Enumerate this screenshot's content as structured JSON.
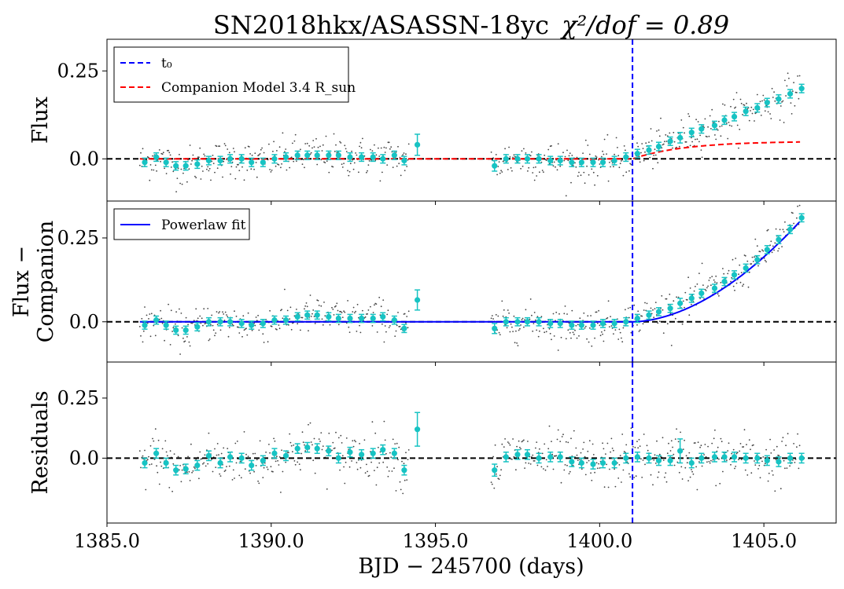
{
  "chart_data": {
    "type": "scatter",
    "title_main": "SN2018hkx/ASASSN-18yc",
    "title_stat": "χ²/dof = 0.89",
    "xlabel": "BJD − 245700 (days)",
    "xlim": [
      1385.0,
      1407.2
    ],
    "x_ticks": [
      1385.0,
      1390.0,
      1395.0,
      1400.0,
      1405.0
    ],
    "x_tick_labels": [
      "1385.0",
      "1390.0",
      "1395.0",
      "1400.0",
      "1405.0"
    ],
    "t0": 1401.0,
    "zero_line": 0.0,
    "colors": {
      "binned": "#17c3c3",
      "raw": "#444444",
      "t0_line": "#0000ff",
      "companion": "#ff0000",
      "powerlaw": "#0000ff",
      "zero_line": "#000000"
    },
    "panels": [
      {
        "name": "flux",
        "ylabel_lines": [
          "Flux"
        ],
        "ylim": [
          -0.12,
          0.34
        ],
        "y_ticks": [
          0.0,
          0.25
        ],
        "y_tick_labels": [
          "0.0",
          "0.25"
        ],
        "legend": [
          {
            "style": "dashed",
            "color": "#0000ff",
            "label": "t₀"
          },
          {
            "style": "dashed",
            "color": "#ff0000",
            "label": "Companion Model  3.4  R_sun"
          }
        ],
        "binned": {
          "x": [
            1386.15,
            1386.5,
            1386.8,
            1387.1,
            1387.4,
            1387.75,
            1388.1,
            1388.45,
            1388.75,
            1389.1,
            1389.4,
            1389.75,
            1390.1,
            1390.45,
            1390.8,
            1391.1,
            1391.4,
            1391.75,
            1392.05,
            1392.4,
            1392.75,
            1393.1,
            1393.4,
            1393.75,
            1394.05,
            1394.45,
            1396.8,
            1397.15,
            1397.5,
            1397.8,
            1398.15,
            1398.5,
            1398.8,
            1399.15,
            1399.45,
            1399.8,
            1400.1,
            1400.45,
            1400.8,
            1401.15,
            1401.5,
            1401.8,
            1402.15,
            1402.45,
            1402.8,
            1403.1,
            1403.5,
            1403.8,
            1404.1,
            1404.45,
            1404.8,
            1405.1,
            1405.45,
            1405.8,
            1406.15
          ],
          "y": [
            -0.01,
            0.005,
            -0.01,
            -0.02,
            -0.02,
            -0.015,
            -0.005,
            -0.005,
            0.0,
            0.0,
            -0.01,
            -0.01,
            0.0,
            0.005,
            0.01,
            0.01,
            0.01,
            0.01,
            0.01,
            0.005,
            0.005,
            0.005,
            0.0,
            0.01,
            -0.005,
            0.04,
            -0.02,
            0.0,
            0.0,
            0.0,
            0.0,
            -0.005,
            -0.005,
            -0.01,
            -0.01,
            -0.01,
            -0.01,
            -0.005,
            0.005,
            0.015,
            0.025,
            0.035,
            0.05,
            0.06,
            0.075,
            0.085,
            0.095,
            0.11,
            0.12,
            0.135,
            0.145,
            0.16,
            0.17,
            0.185,
            0.2
          ],
          "err": [
            0.012,
            0.012,
            0.012,
            0.012,
            0.012,
            0.012,
            0.012,
            0.012,
            0.012,
            0.012,
            0.012,
            0.012,
            0.012,
            0.012,
            0.012,
            0.012,
            0.012,
            0.012,
            0.012,
            0.012,
            0.012,
            0.012,
            0.012,
            0.012,
            0.012,
            0.03,
            0.015,
            0.012,
            0.012,
            0.012,
            0.012,
            0.012,
            0.012,
            0.012,
            0.012,
            0.012,
            0.012,
            0.012,
            0.012,
            0.012,
            0.012,
            0.012,
            0.012,
            0.015,
            0.012,
            0.012,
            0.012,
            0.012,
            0.012,
            0.012,
            0.012,
            0.012,
            0.012,
            0.012,
            0.012
          ]
        }
      },
      {
        "name": "flux-minus-companion",
        "ylabel_lines": [
          "Flux −",
          "Companion"
        ],
        "ylim": [
          -0.12,
          0.36
        ],
        "y_ticks": [
          0.0,
          0.25
        ],
        "y_tick_labels": [
          "0.0",
          "0.25"
        ],
        "legend": [
          {
            "style": "solid",
            "color": "#0000ff",
            "label": "Powerlaw fit"
          }
        ],
        "binned": {
          "x": [
            1386.15,
            1386.5,
            1386.8,
            1387.1,
            1387.4,
            1387.75,
            1388.1,
            1388.45,
            1388.75,
            1389.1,
            1389.4,
            1389.75,
            1390.1,
            1390.45,
            1390.8,
            1391.1,
            1391.4,
            1391.75,
            1392.05,
            1392.4,
            1392.75,
            1393.1,
            1393.4,
            1393.75,
            1394.05,
            1394.45,
            1396.8,
            1397.15,
            1397.5,
            1397.8,
            1398.15,
            1398.5,
            1398.8,
            1399.15,
            1399.45,
            1399.8,
            1400.1,
            1400.45,
            1400.8,
            1401.15,
            1401.5,
            1401.8,
            1402.15,
            1402.45,
            1402.8,
            1403.1,
            1403.5,
            1403.8,
            1404.1,
            1404.45,
            1404.8,
            1405.1,
            1405.45,
            1405.8,
            1406.15
          ],
          "y": [
            -0.01,
            0.005,
            -0.01,
            -0.025,
            -0.025,
            -0.015,
            0.0,
            0.0,
            0.0,
            -0.005,
            -0.01,
            -0.005,
            0.005,
            0.005,
            0.015,
            0.02,
            0.02,
            0.015,
            0.01,
            0.01,
            0.01,
            0.01,
            0.015,
            0.005,
            -0.02,
            0.065,
            -0.02,
            0.0,
            0.0,
            0.0,
            0.0,
            -0.005,
            -0.005,
            -0.01,
            -0.01,
            -0.01,
            -0.005,
            -0.005,
            0.0,
            0.01,
            0.02,
            0.03,
            0.04,
            0.055,
            0.07,
            0.085,
            0.1,
            0.12,
            0.14,
            0.16,
            0.185,
            0.215,
            0.245,
            0.275,
            0.31
          ],
          "err": [
            0.012,
            0.012,
            0.012,
            0.012,
            0.012,
            0.012,
            0.012,
            0.012,
            0.012,
            0.012,
            0.012,
            0.012,
            0.012,
            0.012,
            0.012,
            0.012,
            0.012,
            0.012,
            0.012,
            0.012,
            0.012,
            0.012,
            0.012,
            0.012,
            0.012,
            0.03,
            0.015,
            0.012,
            0.012,
            0.012,
            0.012,
            0.012,
            0.012,
            0.012,
            0.012,
            0.012,
            0.012,
            0.012,
            0.012,
            0.012,
            0.012,
            0.012,
            0.012,
            0.015,
            0.012,
            0.012,
            0.012,
            0.012,
            0.012,
            0.012,
            0.012,
            0.012,
            0.012,
            0.012,
            0.012
          ]
        }
      },
      {
        "name": "residuals",
        "ylabel_lines": [
          "Residuals"
        ],
        "ylim": [
          -0.27,
          0.4
        ],
        "y_ticks": [
          0.0,
          0.25
        ],
        "y_tick_labels": [
          "0.0",
          "0.25"
        ],
        "legend": [],
        "binned": {
          "x": [
            1386.15,
            1386.5,
            1386.8,
            1387.1,
            1387.4,
            1387.75,
            1388.1,
            1388.45,
            1388.75,
            1389.1,
            1389.4,
            1389.75,
            1390.1,
            1390.45,
            1390.8,
            1391.1,
            1391.4,
            1391.75,
            1392.05,
            1392.4,
            1392.75,
            1393.1,
            1393.4,
            1393.75,
            1394.05,
            1394.45,
            1396.8,
            1397.15,
            1397.5,
            1397.8,
            1398.15,
            1398.5,
            1398.8,
            1399.15,
            1399.45,
            1399.8,
            1400.1,
            1400.45,
            1400.8,
            1401.15,
            1401.5,
            1401.8,
            1402.15,
            1402.45,
            1402.8,
            1403.1,
            1403.5,
            1403.8,
            1404.1,
            1404.45,
            1404.8,
            1405.1,
            1405.45,
            1405.8,
            1406.15
          ],
          "y": [
            -0.02,
            0.02,
            -0.02,
            -0.05,
            -0.045,
            -0.03,
            0.01,
            -0.02,
            0.005,
            0.0,
            -0.03,
            -0.01,
            0.02,
            0.01,
            0.04,
            0.045,
            0.04,
            0.03,
            0.0,
            0.025,
            0.015,
            0.02,
            0.035,
            0.02,
            -0.05,
            0.12,
            -0.05,
            0.005,
            0.015,
            0.015,
            0.0,
            0.005,
            0.005,
            -0.015,
            -0.02,
            -0.025,
            -0.02,
            -0.02,
            0.0,
            0.005,
            0.0,
            -0.01,
            -0.01,
            0.03,
            -0.02,
            0.0,
            0.005,
            0.005,
            0.005,
            0.0,
            0.0,
            -0.01,
            -0.015,
            0.0,
            0.0
          ],
          "err": [
            0.02,
            0.02,
            0.02,
            0.02,
            0.02,
            0.02,
            0.02,
            0.02,
            0.02,
            0.02,
            0.02,
            0.02,
            0.02,
            0.02,
            0.02,
            0.02,
            0.02,
            0.02,
            0.02,
            0.02,
            0.02,
            0.02,
            0.02,
            0.02,
            0.02,
            0.07,
            0.025,
            0.02,
            0.02,
            0.02,
            0.02,
            0.02,
            0.02,
            0.02,
            0.02,
            0.02,
            0.02,
            0.02,
            0.02,
            0.02,
            0.02,
            0.02,
            0.02,
            0.05,
            0.02,
            0.02,
            0.02,
            0.02,
            0.02,
            0.02,
            0.02,
            0.02,
            0.02,
            0.02,
            0.02
          ]
        }
      }
    ]
  }
}
